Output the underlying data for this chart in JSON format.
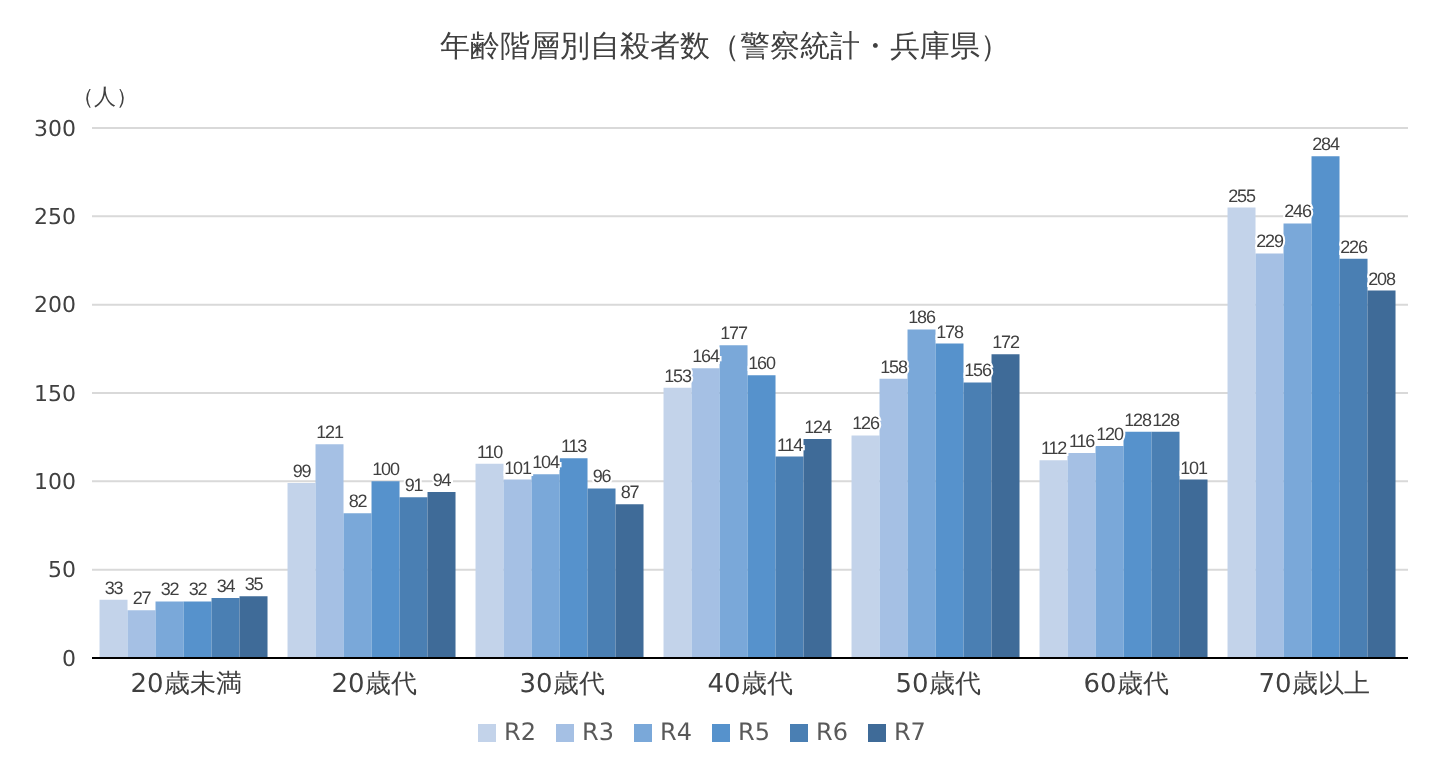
{
  "chart_data": {
    "type": "bar",
    "title": "年齢階層別自殺者数（警察統計・兵庫県）",
    "ylabel": "（人）",
    "categories": [
      "20歳未満",
      "20歳代",
      "30歳代",
      "40歳代",
      "50歳代",
      "60歳代",
      "70歳以上"
    ],
    "series": [
      {
        "name": "R2",
        "color": "#c3d3ea",
        "values": [
          33,
          99,
          110,
          153,
          126,
          112,
          255
        ]
      },
      {
        "name": "R3",
        "color": "#a5c0e4",
        "values": [
          27,
          121,
          101,
          164,
          158,
          116,
          229
        ]
      },
      {
        "name": "R4",
        "color": "#7aa8d9",
        "values": [
          32,
          82,
          104,
          177,
          186,
          120,
          246
        ]
      },
      {
        "name": "R5",
        "color": "#5692cc",
        "values": [
          32,
          100,
          113,
          160,
          178,
          128,
          284
        ]
      },
      {
        "name": "R6",
        "color": "#4a7fb3",
        "values": [
          34,
          91,
          96,
          114,
          156,
          128,
          226
        ]
      },
      {
        "name": "R7",
        "color": "#3f6b98",
        "values": [
          35,
          94,
          87,
          124,
          172,
          101,
          208
        ]
      }
    ],
    "ylim": [
      0,
      300
    ],
    "yticks": [
      0,
      50,
      100,
      150,
      200,
      250,
      300
    ],
    "grid": "y",
    "legend": "bottom",
    "data_labels": true
  }
}
